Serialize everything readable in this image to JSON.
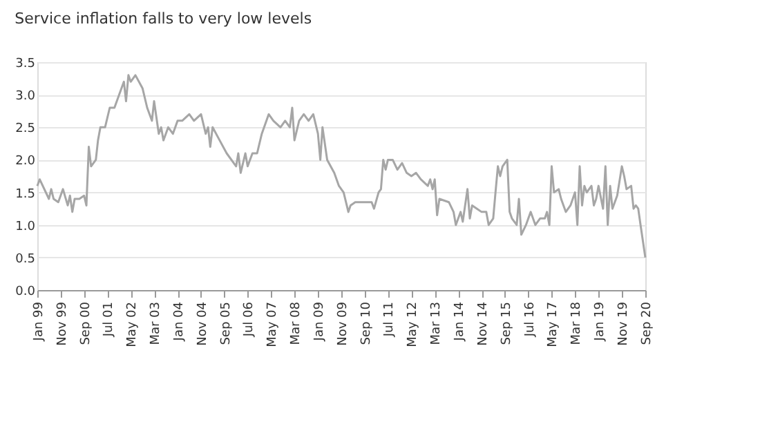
{
  "chart_data": {
    "type": "line",
    "title": "Service inflation falls to very low levels",
    "x": [
      "1999-01",
      "1999-02",
      "1999-06",
      "1999-07",
      "1999-08",
      "1999-10",
      "1999-12",
      "2000-02",
      "2000-03",
      "2000-04",
      "2000-05",
      "2000-07",
      "2000-09",
      "2000-10",
      "2000-11",
      "2000-12",
      "2001-02",
      "2001-03",
      "2001-04",
      "2001-06",
      "2001-08",
      "2001-10",
      "2001-12",
      "2002-02",
      "2002-03",
      "2002-04",
      "2002-05",
      "2002-07",
      "2002-10",
      "2002-12",
      "2003-02",
      "2003-03",
      "2003-05",
      "2003-06",
      "2003-07",
      "2003-09",
      "2003-11",
      "2004-01",
      "2004-03",
      "2004-06",
      "2004-08",
      "2004-11",
      "2005-01",
      "2005-02",
      "2005-03",
      "2005-04",
      "2005-07",
      "2005-10",
      "2006-02",
      "2006-03",
      "2006-04",
      "2006-06",
      "2006-07",
      "2006-09",
      "2006-11",
      "2007-01",
      "2007-04",
      "2007-06",
      "2007-09",
      "2007-11",
      "2008-01",
      "2008-02",
      "2008-03",
      "2008-05",
      "2008-07",
      "2008-09",
      "2008-11",
      "2009-01",
      "2009-02",
      "2009-03",
      "2009-05",
      "2009-08",
      "2009-10",
      "2009-12",
      "2010-02",
      "2010-03",
      "2010-05",
      "2010-08",
      "2010-12",
      "2011-01",
      "2011-03",
      "2011-04",
      "2011-05",
      "2011-06",
      "2011-07",
      "2011-09",
      "2011-11",
      "2012-01",
      "2012-03",
      "2012-05",
      "2012-07",
      "2012-09",
      "2012-12",
      "2013-01",
      "2013-02",
      "2013-03",
      "2013-04",
      "2013-05",
      "2013-09",
      "2013-11",
      "2013-12",
      "2014-02",
      "2014-03",
      "2014-05",
      "2014-06",
      "2014-07",
      "2014-09",
      "2014-11",
      "2015-01",
      "2015-02",
      "2015-04",
      "2015-05",
      "2015-06",
      "2015-07",
      "2015-08",
      "2015-10",
      "2015-11",
      "2015-12",
      "2016-02",
      "2016-03",
      "2016-04",
      "2016-06",
      "2016-08",
      "2016-10",
      "2016-12",
      "2017-02",
      "2017-03",
      "2017-04",
      "2017-05",
      "2017-06",
      "2017-08",
      "2017-09",
      "2017-11",
      "2018-01",
      "2018-03",
      "2018-04",
      "2018-05",
      "2018-06",
      "2018-07",
      "2018-08",
      "2018-10",
      "2018-11",
      "2018-12",
      "2019-01",
      "2019-03",
      "2019-04",
      "2019-05",
      "2019-06",
      "2019-07",
      "2019-09",
      "2019-11",
      "2019-12",
      "2020-01",
      "2020-03",
      "2020-04",
      "2020-05",
      "2020-06",
      "2020-07",
      "2020-09"
    ],
    "series": [
      {
        "color": "#a6a6a6",
        "values": [
          1.6,
          1.7,
          1.4,
          1.55,
          1.4,
          1.35,
          1.55,
          1.3,
          1.45,
          1.2,
          1.4,
          1.4,
          1.45,
          1.3,
          2.2,
          1.9,
          2.0,
          2.3,
          2.5,
          2.5,
          2.8,
          2.8,
          3.0,
          3.2,
          2.9,
          3.3,
          3.2,
          3.3,
          3.1,
          2.8,
          2.6,
          2.9,
          2.4,
          2.5,
          2.3,
          2.5,
          2.4,
          2.6,
          2.6,
          2.7,
          2.6,
          2.7,
          2.4,
          2.5,
          2.2,
          2.5,
          2.3,
          2.1,
          1.9,
          2.1,
          1.8,
          2.1,
          1.9,
          2.1,
          2.1,
          2.4,
          2.7,
          2.6,
          2.5,
          2.6,
          2.5,
          2.8,
          2.3,
          2.6,
          2.7,
          2.6,
          2.7,
          2.4,
          2.0,
          2.5,
          2.0,
          1.8,
          1.6,
          1.5,
          1.2,
          1.3,
          1.35,
          1.35,
          1.35,
          1.25,
          1.5,
          1.55,
          2.0,
          1.85,
          2.0,
          2.0,
          1.85,
          1.95,
          1.8,
          1.75,
          1.8,
          1.7,
          1.6,
          1.7,
          1.55,
          1.7,
          1.15,
          1.4,
          1.35,
          1.2,
          1.0,
          1.2,
          1.05,
          1.55,
          1.1,
          1.3,
          1.25,
          1.2,
          1.2,
          1.0,
          1.1,
          1.5,
          1.9,
          1.75,
          1.9,
          2.0,
          1.2,
          1.1,
          1.0,
          1.4,
          0.85,
          1.0,
          1.2,
          1.0,
          1.1,
          1.1,
          1.2,
          1.0,
          1.9,
          1.5,
          1.55,
          1.4,
          1.2,
          1.3,
          1.5,
          1.0,
          1.9,
          1.3,
          1.6,
          1.5,
          1.6,
          1.3,
          1.4,
          1.6,
          1.25,
          1.9,
          1.0,
          1.6,
          1.25,
          1.45,
          1.9,
          1.75,
          1.55,
          1.6,
          1.25,
          1.3,
          1.25,
          1.0,
          0.5
        ]
      }
    ],
    "xlim": [
      "1999-01",
      "2020-09"
    ],
    "xticks": [
      {
        "value": "1999-01",
        "label": "Jan 99"
      },
      {
        "value": "1999-11",
        "label": "Nov 99"
      },
      {
        "value": "2000-09",
        "label": "Sep 00"
      },
      {
        "value": "2001-07",
        "label": "Jul 01"
      },
      {
        "value": "2002-05",
        "label": "May 02"
      },
      {
        "value": "2003-03",
        "label": "Mar 03"
      },
      {
        "value": "2004-01",
        "label": "Jan 04"
      },
      {
        "value": "2004-11",
        "label": "Nov 04"
      },
      {
        "value": "2005-09",
        "label": "Sep 05"
      },
      {
        "value": "2006-07",
        "label": "Jul 06"
      },
      {
        "value": "2007-05",
        "label": "May 07"
      },
      {
        "value": "2008-03",
        "label": "Mar 08"
      },
      {
        "value": "2009-01",
        "label": "Jan 09"
      },
      {
        "value": "2009-11",
        "label": "Nov 09"
      },
      {
        "value": "2010-09",
        "label": "Sep 10"
      },
      {
        "value": "2011-07",
        "label": "Jul 11"
      },
      {
        "value": "2012-05",
        "label": "May 12"
      },
      {
        "value": "2013-03",
        "label": "Mar 13"
      },
      {
        "value": "2014-01",
        "label": "Jan 14"
      },
      {
        "value": "2014-11",
        "label": "Nov 14"
      },
      {
        "value": "2015-09",
        "label": "Sep 15"
      },
      {
        "value": "2016-07",
        "label": "Jul 16"
      },
      {
        "value": "2017-05",
        "label": "May 17"
      },
      {
        "value": "2018-03",
        "label": "Mar 18"
      },
      {
        "value": "2019-01",
        "label": "Jan 19"
      },
      {
        "value": "2019-11",
        "label": "Nov 19"
      },
      {
        "value": "2020-09",
        "label": "Sep 20"
      }
    ],
    "ylim": [
      0,
      3.5
    ],
    "yticks": [
      {
        "value": 0,
        "label": "0.0"
      },
      {
        "value": 0.5,
        "label": "0.5"
      },
      {
        "value": 1,
        "label": "1.0"
      },
      {
        "value": 1.5,
        "label": "1.5"
      },
      {
        "value": 2,
        "label": "2.0"
      },
      {
        "value": 2.5,
        "label": "2.5"
      },
      {
        "value": 3,
        "label": "3.0"
      },
      {
        "value": 3.5,
        "label": "3.5"
      }
    ],
    "grid": "y",
    "marker": "none",
    "line_style": "solid"
  }
}
